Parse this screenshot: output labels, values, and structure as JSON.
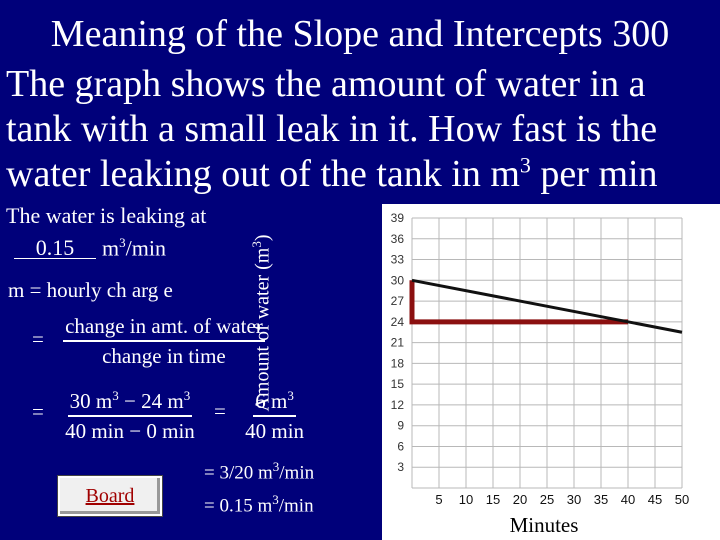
{
  "title": "Meaning of the Slope and Intercepts  300",
  "question": {
    "main": "The graph shows the amount of water in a tank with a small leak in it.  How fast is the water leaking out of the tank in m",
    "sup": "3",
    "tail": " per min"
  },
  "answer": {
    "intro": "The water is leaking at",
    "blank_value": "0.15",
    "unit": "m",
    "unit_sup": "3",
    "unit_tail": "/min"
  },
  "work": {
    "line1_lhs": "m",
    "line1_rhs": "= hourly ch arg e",
    "eq": "=",
    "frac1_num": "change in amt. of  water",
    "frac1_den": "change in  time",
    "frac2_num_a": "30 m",
    "frac2_num_b": "3",
    "frac2_num_c": " − 24 m",
    "frac2_num_d": "3",
    "frac2_den": "40 min − 0 min",
    "frac3_num_a": "6 m",
    "frac3_num_b": "3",
    "frac3_den": "40 min",
    "result1_a": "= 3/20 m",
    "result1_sup": "3",
    "result1_b": "/min",
    "result2_a": "= 0.15 m",
    "result2_sup": "3",
    "result2_b": "/min"
  },
  "board_button": {
    "label": "Board"
  },
  "chart_data": {
    "type": "line",
    "ylabel_a": "Amount of water (m",
    "ylabel_sup": "3",
    "ylabel_b": ")",
    "xlabel": "Minutes",
    "xlim": [
      0,
      50
    ],
    "ylim": [
      0,
      39
    ],
    "x_ticks": [
      5,
      10,
      15,
      20,
      25,
      30,
      35,
      40,
      45,
      50
    ],
    "y_ticks": [
      3,
      6,
      9,
      12,
      15,
      18,
      21,
      24,
      27,
      30,
      33,
      36,
      39
    ],
    "grid": true,
    "series": [
      {
        "points": [
          [
            0,
            30
          ],
          [
            50,
            22.5
          ]
        ],
        "color": "#111111"
      }
    ],
    "slope_triangle": {
      "points": [
        [
          0,
          30
        ],
        [
          0,
          24
        ],
        [
          40,
          24
        ]
      ],
      "color": "#8b1010"
    }
  },
  "colors": {
    "background": "#00007a",
    "text": "#ffffff",
    "triangle": "#8b1010",
    "button_text": "#a00000"
  }
}
